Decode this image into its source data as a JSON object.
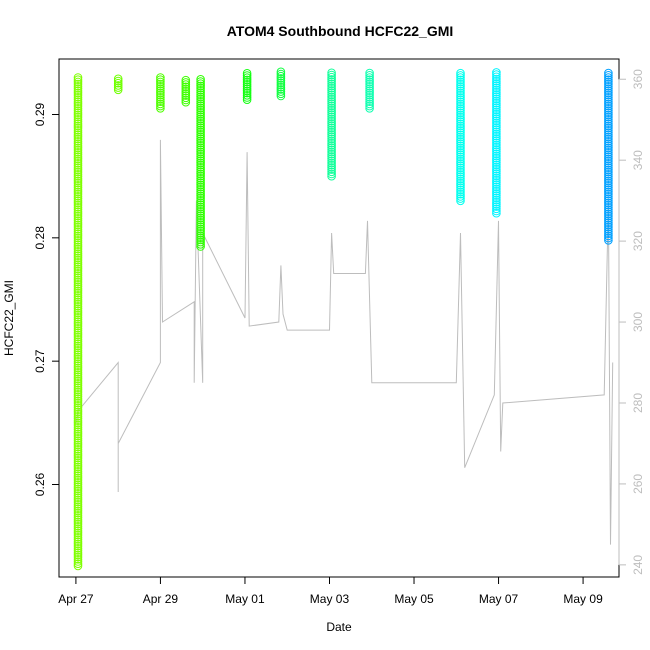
{
  "chart_data": {
    "type": "scatter",
    "title": "ATOM4 Southbound HCFC22_GMI",
    "xlabel": "Date",
    "ylabel": "HCFC22_GMI",
    "x_ticks": [
      "Apr 27",
      "Apr 29",
      "May 01",
      "May 03",
      "May 05",
      "May 07",
      "May 09"
    ],
    "x_tick_days": [
      27,
      29,
      31,
      33,
      35,
      37,
      39
    ],
    "xlim_days": [
      26.6,
      39.85
    ],
    "ylim": [
      0.2525,
      0.2945
    ],
    "y_ticks": [
      0.26,
      0.27,
      0.28,
      0.29
    ],
    "y_tick_labels": [
      "0.26",
      "0.27",
      "0.28",
      "0.29"
    ],
    "y2lim": [
      237,
      365
    ],
    "y2_ticks": [
      240,
      260,
      280,
      300,
      320,
      340,
      360
    ],
    "y2_tick_labels": [
      "240",
      "260",
      "280",
      "300",
      "320",
      "340",
      "360"
    ],
    "grid": false,
    "marker": "open-circle",
    "secondary_line_color": "#bdbdbd",
    "series": [
      {
        "x_day": 27.05,
        "y_min": 0.2534,
        "y_max": 0.293,
        "color": "#7fff00"
      },
      {
        "x_day": 28.0,
        "y_min": 0.292,
        "y_max": 0.293,
        "color": "#6fff00"
      },
      {
        "x_day": 29.0,
        "y_min": 0.2905,
        "y_max": 0.293,
        "color": "#4fff00"
      },
      {
        "x_day": 29.6,
        "y_min": 0.291,
        "y_max": 0.2928,
        "color": "#3fff00"
      },
      {
        "x_day": 29.95,
        "y_min": 0.2793,
        "y_max": 0.293,
        "color": "#2eff00"
      },
      {
        "x_day": 31.05,
        "y_min": 0.2912,
        "y_max": 0.2935,
        "color": "#12ff10"
      },
      {
        "x_day": 31.85,
        "y_min": 0.2915,
        "y_max": 0.2935,
        "color": "#10ff40"
      },
      {
        "x_day": 33.05,
        "y_min": 0.285,
        "y_max": 0.2935,
        "color": "#10ff9a"
      },
      {
        "x_day": 33.95,
        "y_min": 0.2905,
        "y_max": 0.2935,
        "color": "#10ffb0"
      },
      {
        "x_day": 36.1,
        "y_min": 0.283,
        "y_max": 0.2935,
        "color": "#00ffee"
      },
      {
        "x_day": 36.95,
        "y_min": 0.282,
        "y_max": 0.2935,
        "color": "#00f4ff"
      },
      {
        "x_day": 39.6,
        "y_min": 0.2798,
        "y_max": 0.2935,
        "color": "#00a0ff"
      }
    ],
    "secondary_path": [
      [
        27.0,
        275
      ],
      [
        27.05,
        278
      ],
      [
        28.0,
        290
      ],
      [
        28.0,
        258
      ],
      [
        28.0,
        270
      ],
      [
        29.0,
        290
      ],
      [
        29.0,
        345
      ],
      [
        29.05,
        300
      ],
      [
        29.8,
        305
      ],
      [
        29.8,
        285
      ],
      [
        29.85,
        330
      ],
      [
        30.0,
        285
      ],
      [
        30.0,
        322
      ],
      [
        31.0,
        301
      ],
      [
        31.05,
        342
      ],
      [
        31.1,
        299
      ],
      [
        31.8,
        300
      ],
      [
        31.85,
        314
      ],
      [
        31.9,
        302
      ],
      [
        32.0,
        298
      ],
      [
        33.0,
        298
      ],
      [
        33.05,
        322
      ],
      [
        33.1,
        312
      ],
      [
        33.85,
        312
      ],
      [
        33.9,
        325
      ],
      [
        34.0,
        285
      ],
      [
        36.0,
        285
      ],
      [
        36.1,
        322
      ],
      [
        36.2,
        264
      ],
      [
        36.9,
        282
      ],
      [
        37.0,
        325
      ],
      [
        37.05,
        268
      ],
      [
        37.1,
        280
      ],
      [
        39.5,
        282
      ],
      [
        39.6,
        330
      ],
      [
        39.65,
        245
      ],
      [
        39.7,
        290
      ]
    ]
  }
}
